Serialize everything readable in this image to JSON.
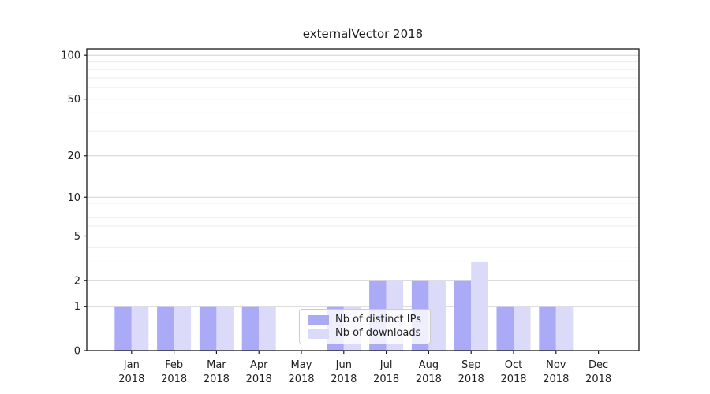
{
  "chart_data": {
    "type": "bar",
    "title": "externalVector 2018",
    "categories": [
      "Jan",
      "Feb",
      "Mar",
      "Apr",
      "May",
      "Jun",
      "Jul",
      "Aug",
      "Sep",
      "Oct",
      "Nov",
      "Dec"
    ],
    "x_year_label": "2018",
    "series": [
      {
        "name": "Nb of distinct IPs",
        "color": "#aaaaf6",
        "values": [
          1,
          1,
          1,
          1,
          0,
          1,
          2,
          2,
          2,
          1,
          1,
          0
        ]
      },
      {
        "name": "Nb of downloads",
        "color": "#dbdaf8",
        "values": [
          1,
          1,
          1,
          1,
          0,
          1,
          2,
          2,
          3,
          1,
          1,
          0
        ]
      }
    ],
    "y_axis": {
      "scale": "log10(1+y)",
      "tick_values": [
        0,
        1,
        2,
        5,
        10,
        20,
        50,
        100
      ],
      "major_gridlines": [
        1,
        2,
        5,
        10,
        20,
        50,
        100
      ],
      "minor_gridlines": [
        3,
        4,
        6,
        7,
        8,
        9,
        30,
        40,
        60,
        70,
        80,
        90
      ],
      "ylim": [
        0,
        111
      ]
    },
    "legend": {
      "position": "lower center"
    },
    "grid": "on",
    "xlabel": "",
    "ylabel": ""
  },
  "colors": {
    "major_grid": "#d0d0d0",
    "minor_grid": "#ececec",
    "spine": "#1a1a1a",
    "tick_text": "#1f1f1f"
  }
}
